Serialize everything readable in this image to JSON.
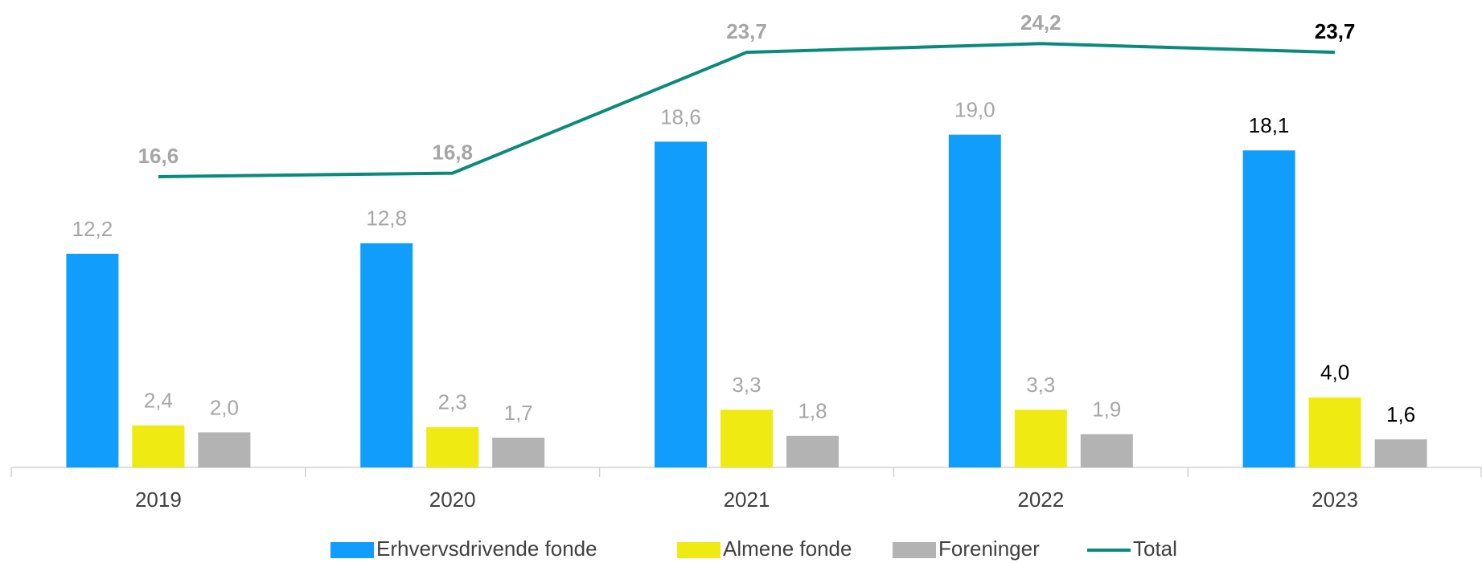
{
  "chart_data": {
    "type": "bar_line",
    "categories": [
      "2019",
      "2020",
      "2021",
      "2022",
      "2023"
    ],
    "series": [
      {
        "name": "Erhvervsdrivende fonde",
        "color": "#119dfc",
        "type": "bar",
        "values": [
          12.2,
          12.8,
          18.6,
          19.0,
          18.1
        ],
        "value_labels": [
          "12,2",
          "12,8",
          "18,6",
          "19,0",
          "18,1"
        ]
      },
      {
        "name": "Almene fonde",
        "color": "#eeea12",
        "type": "bar",
        "values": [
          2.4,
          2.3,
          3.3,
          3.3,
          4.0
        ],
        "value_labels": [
          "2,4",
          "2,3",
          "3,3",
          "3,3",
          "4,0"
        ]
      },
      {
        "name": "Foreninger",
        "color": "#b3b3b3",
        "type": "bar",
        "values": [
          2.0,
          1.7,
          1.8,
          1.9,
          1.6
        ],
        "value_labels": [
          "2,0",
          "1,7",
          "1,8",
          "1,9",
          "1,6"
        ]
      },
      {
        "name": "Total",
        "color": "#0a8a7a",
        "type": "line",
        "values": [
          16.6,
          16.8,
          23.7,
          24.2,
          23.7
        ],
        "value_labels": [
          "16,6",
          "16,8",
          "23,7",
          "24,2",
          "23,7"
        ]
      }
    ],
    "ylim": [
      0,
      26
    ],
    "legend": "bottom"
  }
}
